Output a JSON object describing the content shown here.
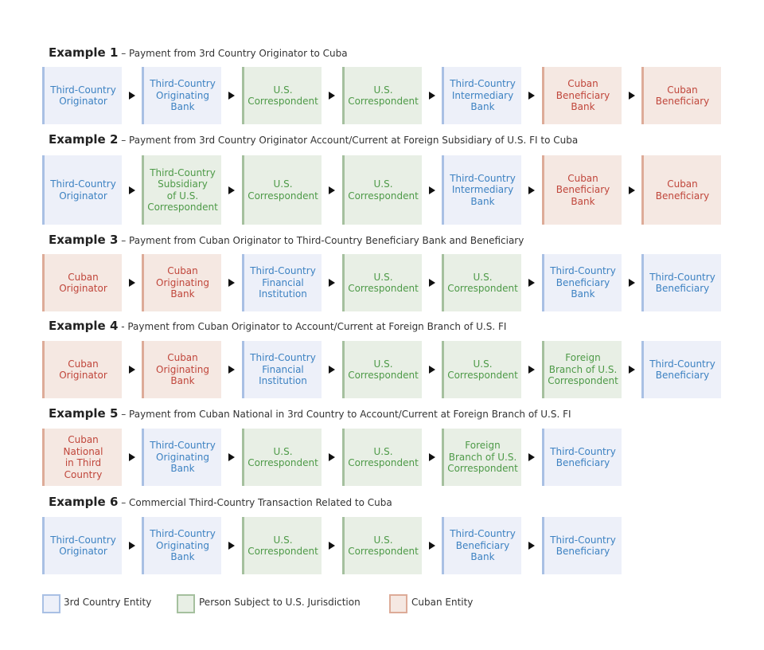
{
  "examples": [
    {
      "number": "Example 1",
      "description": "– Payment from 3rd Country Originator to Cuba",
      "steps": [
        {
          "label": "Third-Country\nOriginator",
          "type": "third"
        },
        {
          "label": "Third-Country\nOriginating\nBank",
          "type": "third"
        },
        {
          "label": "U.S.\nCorrespondent",
          "type": "us"
        },
        {
          "label": "U.S.\nCorrespondent",
          "type": "us"
        },
        {
          "label": "Third-Country\nIntermediary\nBank",
          "type": "third"
        },
        {
          "label": "Cuban\nBeneficiary\nBank",
          "type": "cuban"
        },
        {
          "label": "Cuban\nBeneficiary",
          "type": "cuban"
        }
      ]
    },
    {
      "number": "Example 2",
      "description": "– Payment from 3rd Country Originator Account/Current at Foreign Subsidiary of U.S. FI  to Cuba",
      "steps": [
        {
          "label": "Third-Country\nOriginator",
          "type": "third"
        },
        {
          "label": "Third-Country\nSubsidiary\nof U.S.\nCorrespondent",
          "type": "us"
        },
        {
          "label": "U.S.\nCorrespondent",
          "type": "us"
        },
        {
          "label": "U.S.\nCorrespondent",
          "type": "us"
        },
        {
          "label": "Third-Country\nIntermediary\nBank",
          "type": "third"
        },
        {
          "label": "Cuban\nBeneficiary\nBank",
          "type": "cuban"
        },
        {
          "label": "Cuban\nBeneficiary",
          "type": "cuban"
        }
      ]
    },
    {
      "number": "Example 3",
      "description": "– Payment from Cuban Originator to Third-Country Beneficiary Bank and Beneficiary",
      "steps": [
        {
          "label": "Cuban\nOriginator",
          "type": "cuban"
        },
        {
          "label": "Cuban\nOriginating\nBank",
          "type": "cuban"
        },
        {
          "label": "Third-Country\nFinancial\nInstitution",
          "type": "third"
        },
        {
          "label": "U.S.\nCorrespondent",
          "type": "us"
        },
        {
          "label": "U.S.\nCorrespondent",
          "type": "us"
        },
        {
          "label": "Third-Country\nBeneficiary\nBank",
          "type": "third"
        },
        {
          "label": "Third-Country\nBeneficiary",
          "type": "third"
        }
      ]
    },
    {
      "number": "Example 4",
      "description": "- Payment from Cuban Originator to Account/Current at Foreign Branch of U.S. FI",
      "steps": [
        {
          "label": "Cuban\nOriginator",
          "type": "cuban"
        },
        {
          "label": "Cuban\nOriginating\nBank",
          "type": "cuban"
        },
        {
          "label": "Third-Country\nFinancial\nInstitution",
          "type": "third"
        },
        {
          "label": "U.S.\nCorrespondent",
          "type": "us"
        },
        {
          "label": "U.S.\nCorrespondent",
          "type": "us"
        },
        {
          "label": "Foreign\nBranch of U.S.\nCorrespondent",
          "type": "us"
        },
        {
          "label": "Third-Country\nBeneficiary",
          "type": "third"
        }
      ]
    },
    {
      "number": "Example 5",
      "description": "– Payment from Cuban National in 3rd Country to Account/Current at Foreign Branch of U.S. FI",
      "steps": [
        {
          "label": "Cuban National\nin Third Country",
          "type": "cuban"
        },
        {
          "label": "Third-Country\nOriginating\nBank",
          "type": "third"
        },
        {
          "label": "U.S.\nCorrespondent",
          "type": "us"
        },
        {
          "label": "U.S.\nCorrespondent",
          "type": "us"
        },
        {
          "label": "Foreign\nBranch of U.S.\nCorrespondent",
          "type": "us"
        },
        {
          "label": "Third-Country\nBeneficiary",
          "type": "third"
        }
      ]
    },
    {
      "number": "Example 6",
      "description": "– Commercial  Third-Country Transaction Related to Cuba",
      "steps": [
        {
          "label": "Third-Country\nOriginator",
          "type": "third"
        },
        {
          "label": "Third-Country\nOriginating\nBank",
          "type": "third"
        },
        {
          "label": "U.S.\nCorrespondent",
          "type": "us"
        },
        {
          "label": "U.S.\nCorrespondent",
          "type": "us"
        },
        {
          "label": "Third-Country\nBeneficiary\nBank",
          "type": "third"
        },
        {
          "label": "Third-Country\nBeneficiary",
          "type": "third"
        }
      ]
    }
  ],
  "legend": {
    "third": "3rd Country Entity",
    "us": "Person Subject to U.S. Jurisdiction",
    "cuban": "Cuban Entity"
  },
  "colors": {
    "third_fill": "#edf0f9",
    "third_border": "#a9c0e4",
    "third_text": "#3d82c2",
    "us_fill": "#e8efe5",
    "us_border": "#a5c09e",
    "us_text": "#4e9a48",
    "cuban_fill": "#f5e8e2",
    "cuban_border": "#ddab98",
    "cuban_text": "#c0463b"
  }
}
